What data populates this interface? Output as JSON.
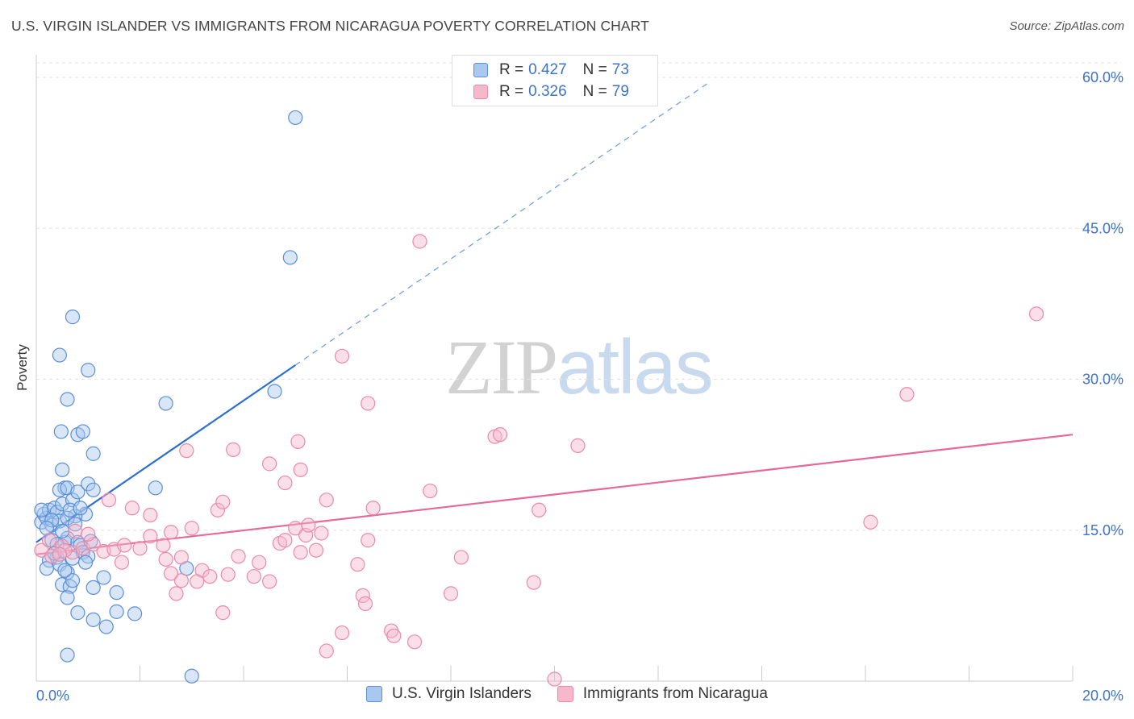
{
  "header": {
    "title": "U.S. VIRGIN ISLANDER VS IMMIGRANTS FROM NICARAGUA POVERTY CORRELATION CHART",
    "source": "Source: ZipAtlas.com"
  },
  "watermark": {
    "zip": "ZIP",
    "atlas": "atlas"
  },
  "legend": {
    "series1": {
      "r_label": "R =",
      "r_value": "0.427",
      "n_label": "N =",
      "n_value": "73"
    },
    "series2": {
      "r_label": "R =",
      "r_value": "0.326",
      "n_label": "N =",
      "n_value": "79"
    }
  },
  "colors": {
    "blue_fill": "#a9c8f0",
    "blue_stroke": "#5b8fd6",
    "blue_line": "#2b6fd1",
    "pink_fill": "#f7b8cc",
    "pink_stroke": "#e98aa9",
    "pink_line": "#e5699a",
    "grid": "#e3e3e3",
    "axis_label": "#3d73c9"
  },
  "chart_data": {
    "type": "scatter",
    "xlabel": "",
    "ylabel": "Poverty",
    "xlim": [
      0,
      20
    ],
    "ylim": [
      0,
      60
    ],
    "x_tick_labels": [
      {
        "value": 0,
        "label": "0.0%"
      },
      {
        "value": 20,
        "label": "20.0%"
      }
    ],
    "y_tick_labels": [
      {
        "value": 15,
        "label": "15.0%"
      },
      {
        "value": 30,
        "label": "30.0%"
      },
      {
        "value": 45,
        "label": "45.0%"
      },
      {
        "value": 60,
        "label": "60.0%"
      }
    ],
    "legend_placement": "top-center",
    "series": [
      {
        "name": "U.S. Virgin Islanders",
        "trend": {
          "x0": 0,
          "y0": 13.8,
          "x1": 5.0,
          "y1": 31.4,
          "dashed_to_x": 13.0
        },
        "points": [
          [
            0.1,
            15.8
          ],
          [
            0.15,
            16.6
          ],
          [
            0.2,
            16.2
          ],
          [
            0.25,
            17.0
          ],
          [
            0.3,
            15.5
          ],
          [
            0.1,
            17.0
          ],
          [
            0.35,
            17.2
          ],
          [
            0.4,
            16.8
          ],
          [
            0.45,
            15.9
          ],
          [
            0.5,
            17.6
          ],
          [
            0.3,
            14.0
          ],
          [
            0.55,
            13.8
          ],
          [
            0.6,
            14.2
          ],
          [
            0.25,
            12.0
          ],
          [
            0.2,
            11.2
          ],
          [
            0.4,
            12.3
          ],
          [
            0.7,
            12.2
          ],
          [
            0.8,
            13.8
          ],
          [
            0.85,
            13.5
          ],
          [
            0.9,
            12.8
          ],
          [
            1.0,
            12.4
          ],
          [
            0.45,
            11.6
          ],
          [
            0.6,
            10.8
          ],
          [
            0.5,
            9.6
          ],
          [
            0.65,
            9.4
          ],
          [
            0.7,
            10.0
          ],
          [
            0.55,
            19.2
          ],
          [
            0.45,
            19.0
          ],
          [
            0.6,
            19.2
          ],
          [
            0.7,
            18.0
          ],
          [
            0.8,
            18.8
          ],
          [
            0.5,
            21.0
          ],
          [
            1.0,
            19.6
          ],
          [
            1.1,
            19.0
          ],
          [
            0.95,
            16.6
          ],
          [
            0.75,
            16.4
          ],
          [
            0.6,
            16.2
          ],
          [
            0.48,
            24.8
          ],
          [
            0.8,
            24.5
          ],
          [
            0.9,
            24.8
          ],
          [
            1.1,
            22.6
          ],
          [
            0.6,
            28.0
          ],
          [
            1.0,
            30.9
          ],
          [
            0.45,
            32.4
          ],
          [
            0.7,
            36.2
          ],
          [
            2.5,
            27.6
          ],
          [
            2.3,
            19.2
          ],
          [
            4.6,
            28.8
          ],
          [
            4.9,
            42.1
          ],
          [
            5.0,
            56.0
          ],
          [
            1.1,
            9.3
          ],
          [
            1.3,
            10.3
          ],
          [
            1.55,
            8.8
          ],
          [
            0.6,
            8.3
          ],
          [
            0.8,
            6.8
          ],
          [
            1.1,
            6.1
          ],
          [
            1.35,
            5.4
          ],
          [
            1.55,
            6.9
          ],
          [
            1.9,
            6.7
          ],
          [
            0.6,
            2.6
          ],
          [
            3.0,
            0.5
          ],
          [
            2.9,
            11.2
          ],
          [
            0.5,
            14.9
          ],
          [
            0.75,
            15.6
          ],
          [
            0.3,
            16.0
          ],
          [
            0.65,
            17.0
          ],
          [
            0.85,
            17.2
          ],
          [
            0.4,
            13.6
          ],
          [
            1.05,
            13.9
          ],
          [
            0.95,
            11.8
          ],
          [
            0.35,
            12.7
          ],
          [
            0.55,
            11.0
          ],
          [
            0.2,
            15.2
          ]
        ]
      },
      {
        "name": "Immigrants from Nicaragua",
        "trend": {
          "x0": 0,
          "y0": 12.6,
          "x1": 20,
          "y1": 24.5
        },
        "points": [
          [
            0.1,
            13.0
          ],
          [
            0.3,
            12.4
          ],
          [
            0.5,
            13.4
          ],
          [
            0.7,
            12.8
          ],
          [
            0.9,
            13.2
          ],
          [
            1.1,
            13.6
          ],
          [
            1.3,
            12.9
          ],
          [
            1.5,
            13.1
          ],
          [
            1.7,
            13.5
          ],
          [
            2.0,
            13.2
          ],
          [
            2.2,
            14.4
          ],
          [
            2.5,
            12.1
          ],
          [
            0.25,
            14.0
          ],
          [
            0.55,
            13.0
          ],
          [
            0.75,
            14.9
          ],
          [
            1.0,
            14.6
          ],
          [
            1.4,
            18.0
          ],
          [
            1.85,
            17.2
          ],
          [
            2.2,
            16.5
          ],
          [
            2.6,
            14.8
          ],
          [
            3.0,
            15.2
          ],
          [
            3.5,
            17.0
          ],
          [
            3.6,
            17.8
          ],
          [
            3.2,
            11.0
          ],
          [
            2.8,
            10.0
          ],
          [
            2.6,
            10.7
          ],
          [
            2.7,
            8.7
          ],
          [
            3.1,
            9.9
          ],
          [
            3.35,
            10.4
          ],
          [
            3.7,
            10.6
          ],
          [
            3.9,
            12.4
          ],
          [
            4.2,
            10.4
          ],
          [
            4.3,
            11.8
          ],
          [
            4.5,
            9.9
          ],
          [
            4.7,
            13.7
          ],
          [
            4.8,
            14.0
          ],
          [
            5.0,
            15.2
          ],
          [
            5.1,
            12.8
          ],
          [
            5.2,
            14.5
          ],
          [
            5.25,
            15.5
          ],
          [
            5.5,
            14.7
          ],
          [
            5.4,
            13.0
          ],
          [
            5.6,
            18.0
          ],
          [
            4.5,
            21.6
          ],
          [
            4.8,
            19.7
          ],
          [
            5.05,
            23.8
          ],
          [
            5.1,
            21.0
          ],
          [
            3.8,
            23.0
          ],
          [
            2.9,
            22.9
          ],
          [
            2.8,
            12.3
          ],
          [
            2.45,
            13.5
          ],
          [
            3.6,
            6.8
          ],
          [
            5.9,
            32.3
          ],
          [
            6.4,
            27.6
          ],
          [
            6.5,
            17.2
          ],
          [
            6.4,
            14.0
          ],
          [
            6.2,
            11.6
          ],
          [
            6.3,
            8.5
          ],
          [
            6.35,
            7.7
          ],
          [
            6.85,
            5.0
          ],
          [
            6.9,
            4.5
          ],
          [
            7.3,
            3.9
          ],
          [
            5.6,
            3.0
          ],
          [
            5.9,
            4.8
          ],
          [
            7.4,
            43.7
          ],
          [
            7.6,
            18.9
          ],
          [
            8.0,
            8.7
          ],
          [
            8.2,
            12.3
          ],
          [
            8.85,
            24.3
          ],
          [
            8.95,
            24.5
          ],
          [
            9.7,
            17.0
          ],
          [
            9.6,
            9.8
          ],
          [
            10.45,
            23.4
          ],
          [
            10.0,
            0.2
          ],
          [
            16.1,
            15.8
          ],
          [
            16.8,
            28.5
          ],
          [
            19.3,
            36.5
          ],
          [
            0.45,
            12.6
          ],
          [
            1.65,
            11.8
          ]
        ]
      }
    ]
  }
}
